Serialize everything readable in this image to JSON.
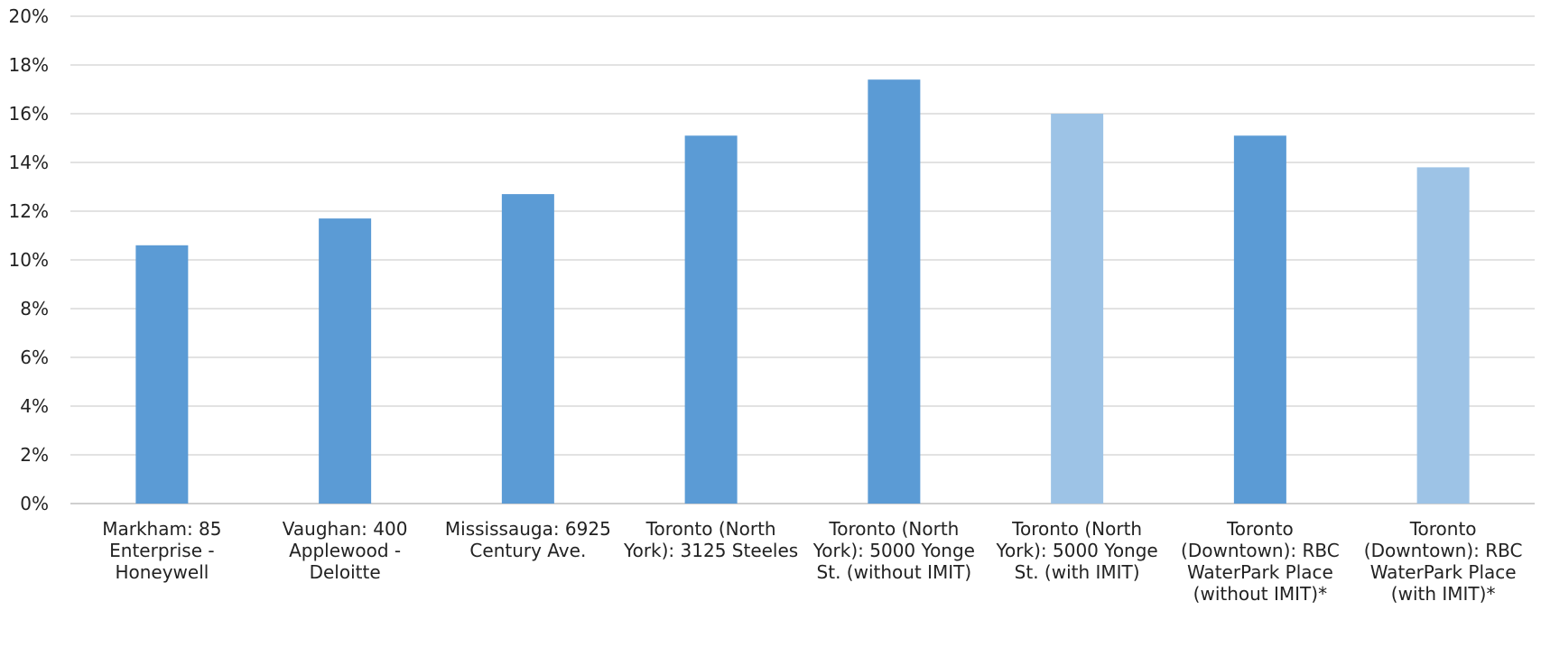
{
  "chart_data": {
    "type": "bar",
    "title": "",
    "xlabel": "",
    "ylabel": "",
    "ylim": [
      0,
      20
    ],
    "y_ticks": [
      "0%",
      "2%",
      "4%",
      "6%",
      "8%",
      "10%",
      "12%",
      "14%",
      "16%",
      "18%",
      "20%"
    ],
    "y_tick_values": [
      0,
      2,
      4,
      6,
      8,
      10,
      12,
      14,
      16,
      18,
      20
    ],
    "grid": true,
    "legend": "none",
    "categories": [
      [
        "Markham: 85",
        "Enterprise -",
        "Honeywell"
      ],
      [
        "Vaughan: 400",
        "Applewood -",
        "Deloitte"
      ],
      [
        "Mississauga: 6925",
        "Century Ave."
      ],
      [
        "Toronto (North",
        "York): 3125 Steeles"
      ],
      [
        "Toronto (North",
        "York): 5000 Yonge",
        "St. (without IMIT)"
      ],
      [
        "Toronto (North",
        "York): 5000 Yonge",
        "St. (with IMIT)"
      ],
      [
        "Toronto",
        "(Downtown): RBC",
        "WaterPark Place",
        "(without IMIT)*"
      ],
      [
        "Toronto",
        "(Downtown): RBC",
        "WaterPark Place",
        "(with IMIT)*"
      ]
    ],
    "values": [
      10.6,
      11.7,
      12.7,
      15.1,
      17.4,
      16.0,
      15.1,
      13.8
    ],
    "bar_colors": [
      "#5b9bd5",
      "#5b9bd5",
      "#5b9bd5",
      "#5b9bd5",
      "#5b9bd5",
      "#9dc3e6",
      "#5b9bd5",
      "#9dc3e6"
    ]
  }
}
